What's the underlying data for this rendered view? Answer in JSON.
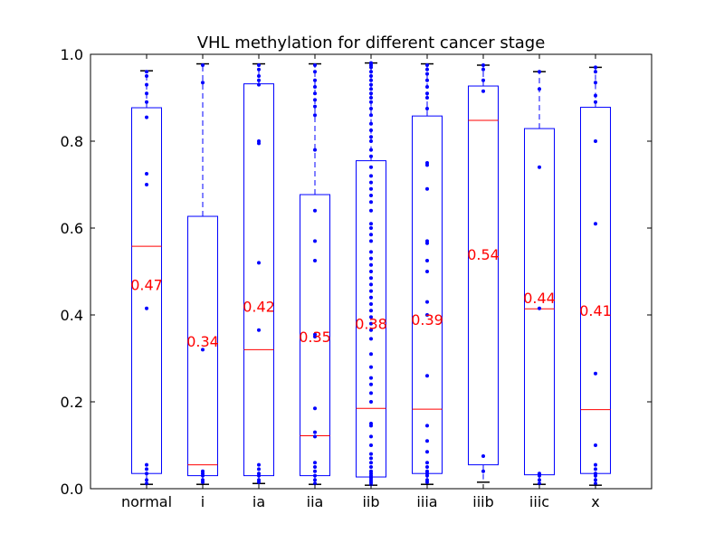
{
  "chart_data": {
    "type": "box",
    "title": "VHL methylation for different cancer stage",
    "xlabel": "",
    "ylabel": "",
    "ylim": [
      0,
      1
    ],
    "yticks": [
      "0.0",
      "0.2",
      "0.4",
      "0.6",
      "0.8",
      "1.0"
    ],
    "grid": false,
    "colors": {
      "box": "#0000ff",
      "median": "#ff0000",
      "points": "#0000ff",
      "mean_label": "#ff0000"
    },
    "categories": [
      "normal",
      "i",
      "ia",
      "iia",
      "iib",
      "iiia",
      "iiib",
      "iiic",
      "x"
    ],
    "boxes": [
      {
        "q1": 0.035,
        "median": 0.558,
        "q3": 0.877,
        "whisker_low": 0.01,
        "whisker_high": 0.962,
        "mean_label": "0.47",
        "mean": 0.47,
        "points": [
          0.96,
          0.95,
          0.93,
          0.91,
          0.89,
          0.855,
          0.725,
          0.7,
          0.415,
          0.055,
          0.045,
          0.035,
          0.02,
          0.012
        ]
      },
      {
        "q1": 0.03,
        "median": 0.055,
        "q3": 0.627,
        "whisker_low": 0.01,
        "whisker_high": 0.978,
        "mean_label": "0.34",
        "mean": 0.34,
        "points": [
          0.975,
          0.935,
          0.32,
          0.04,
          0.035,
          0.03,
          0.02,
          0.015
        ]
      },
      {
        "q1": 0.03,
        "median": 0.32,
        "q3": 0.932,
        "whisker_low": 0.012,
        "whisker_high": 0.978,
        "mean_label": "0.42",
        "mean": 0.42,
        "points": [
          0.975,
          0.965,
          0.95,
          0.94,
          0.93,
          0.8,
          0.795,
          0.52,
          0.365,
          0.055,
          0.045,
          0.035,
          0.03,
          0.02,
          0.015
        ]
      },
      {
        "q1": 0.03,
        "median": 0.122,
        "q3": 0.677,
        "whisker_low": 0.01,
        "whisker_high": 0.978,
        "mean_label": "0.35",
        "mean": 0.35,
        "points": [
          0.975,
          0.96,
          0.94,
          0.925,
          0.91,
          0.895,
          0.88,
          0.86,
          0.78,
          0.64,
          0.57,
          0.525,
          0.355,
          0.35,
          0.185,
          0.13,
          0.12,
          0.06,
          0.05,
          0.04,
          0.03,
          0.02,
          0.012
        ]
      },
      {
        "q1": 0.027,
        "median": 0.185,
        "q3": 0.755,
        "whisker_low": 0.008,
        "whisker_high": 0.98,
        "mean_label": "0.38",
        "mean": 0.38,
        "points": [
          0.98,
          0.975,
          0.97,
          0.96,
          0.95,
          0.94,
          0.93,
          0.92,
          0.91,
          0.9,
          0.89,
          0.875,
          0.86,
          0.84,
          0.825,
          0.81,
          0.8,
          0.78,
          0.765,
          0.74,
          0.72,
          0.705,
          0.69,
          0.675,
          0.66,
          0.64,
          0.61,
          0.6,
          0.585,
          0.57,
          0.545,
          0.53,
          0.515,
          0.5,
          0.485,
          0.47,
          0.455,
          0.44,
          0.425,
          0.41,
          0.395,
          0.38,
          0.365,
          0.345,
          0.31,
          0.28,
          0.255,
          0.24,
          0.22,
          0.2,
          0.15,
          0.145,
          0.12,
          0.1,
          0.08,
          0.07,
          0.06,
          0.05,
          0.04,
          0.035,
          0.03,
          0.025,
          0.02,
          0.015,
          0.01
        ]
      },
      {
        "q1": 0.035,
        "median": 0.183,
        "q3": 0.858,
        "whisker_low": 0.01,
        "whisker_high": 0.978,
        "mean_label": "0.39",
        "mean": 0.39,
        "points": [
          0.975,
          0.965,
          0.955,
          0.94,
          0.925,
          0.91,
          0.9,
          0.875,
          0.75,
          0.745,
          0.69,
          0.57,
          0.565,
          0.525,
          0.5,
          0.43,
          0.4,
          0.26,
          0.145,
          0.11,
          0.085,
          0.06,
          0.05,
          0.04,
          0.035,
          0.03,
          0.02,
          0.015
        ]
      },
      {
        "q1": 0.055,
        "median": 0.848,
        "q3": 0.927,
        "whisker_low": 0.015,
        "whisker_high": 0.975,
        "mean_label": "0.54",
        "mean": 0.54,
        "points": [
          0.975,
          0.965,
          0.94,
          0.915,
          0.075,
          0.04
        ]
      },
      {
        "q1": 0.032,
        "median": 0.414,
        "q3": 0.829,
        "whisker_low": 0.01,
        "whisker_high": 0.96,
        "mean_label": "0.44",
        "mean": 0.44,
        "points": [
          0.96,
          0.92,
          0.74,
          0.415,
          0.035,
          0.03,
          0.02,
          0.012
        ]
      },
      {
        "q1": 0.035,
        "median": 0.182,
        "q3": 0.878,
        "whisker_low": 0.008,
        "whisker_high": 0.97,
        "mean_label": "0.41",
        "mean": 0.41,
        "points": [
          0.97,
          0.96,
          0.935,
          0.905,
          0.89,
          0.8,
          0.61,
          0.265,
          0.1,
          0.055,
          0.045,
          0.035,
          0.03,
          0.02,
          0.012
        ]
      }
    ]
  }
}
